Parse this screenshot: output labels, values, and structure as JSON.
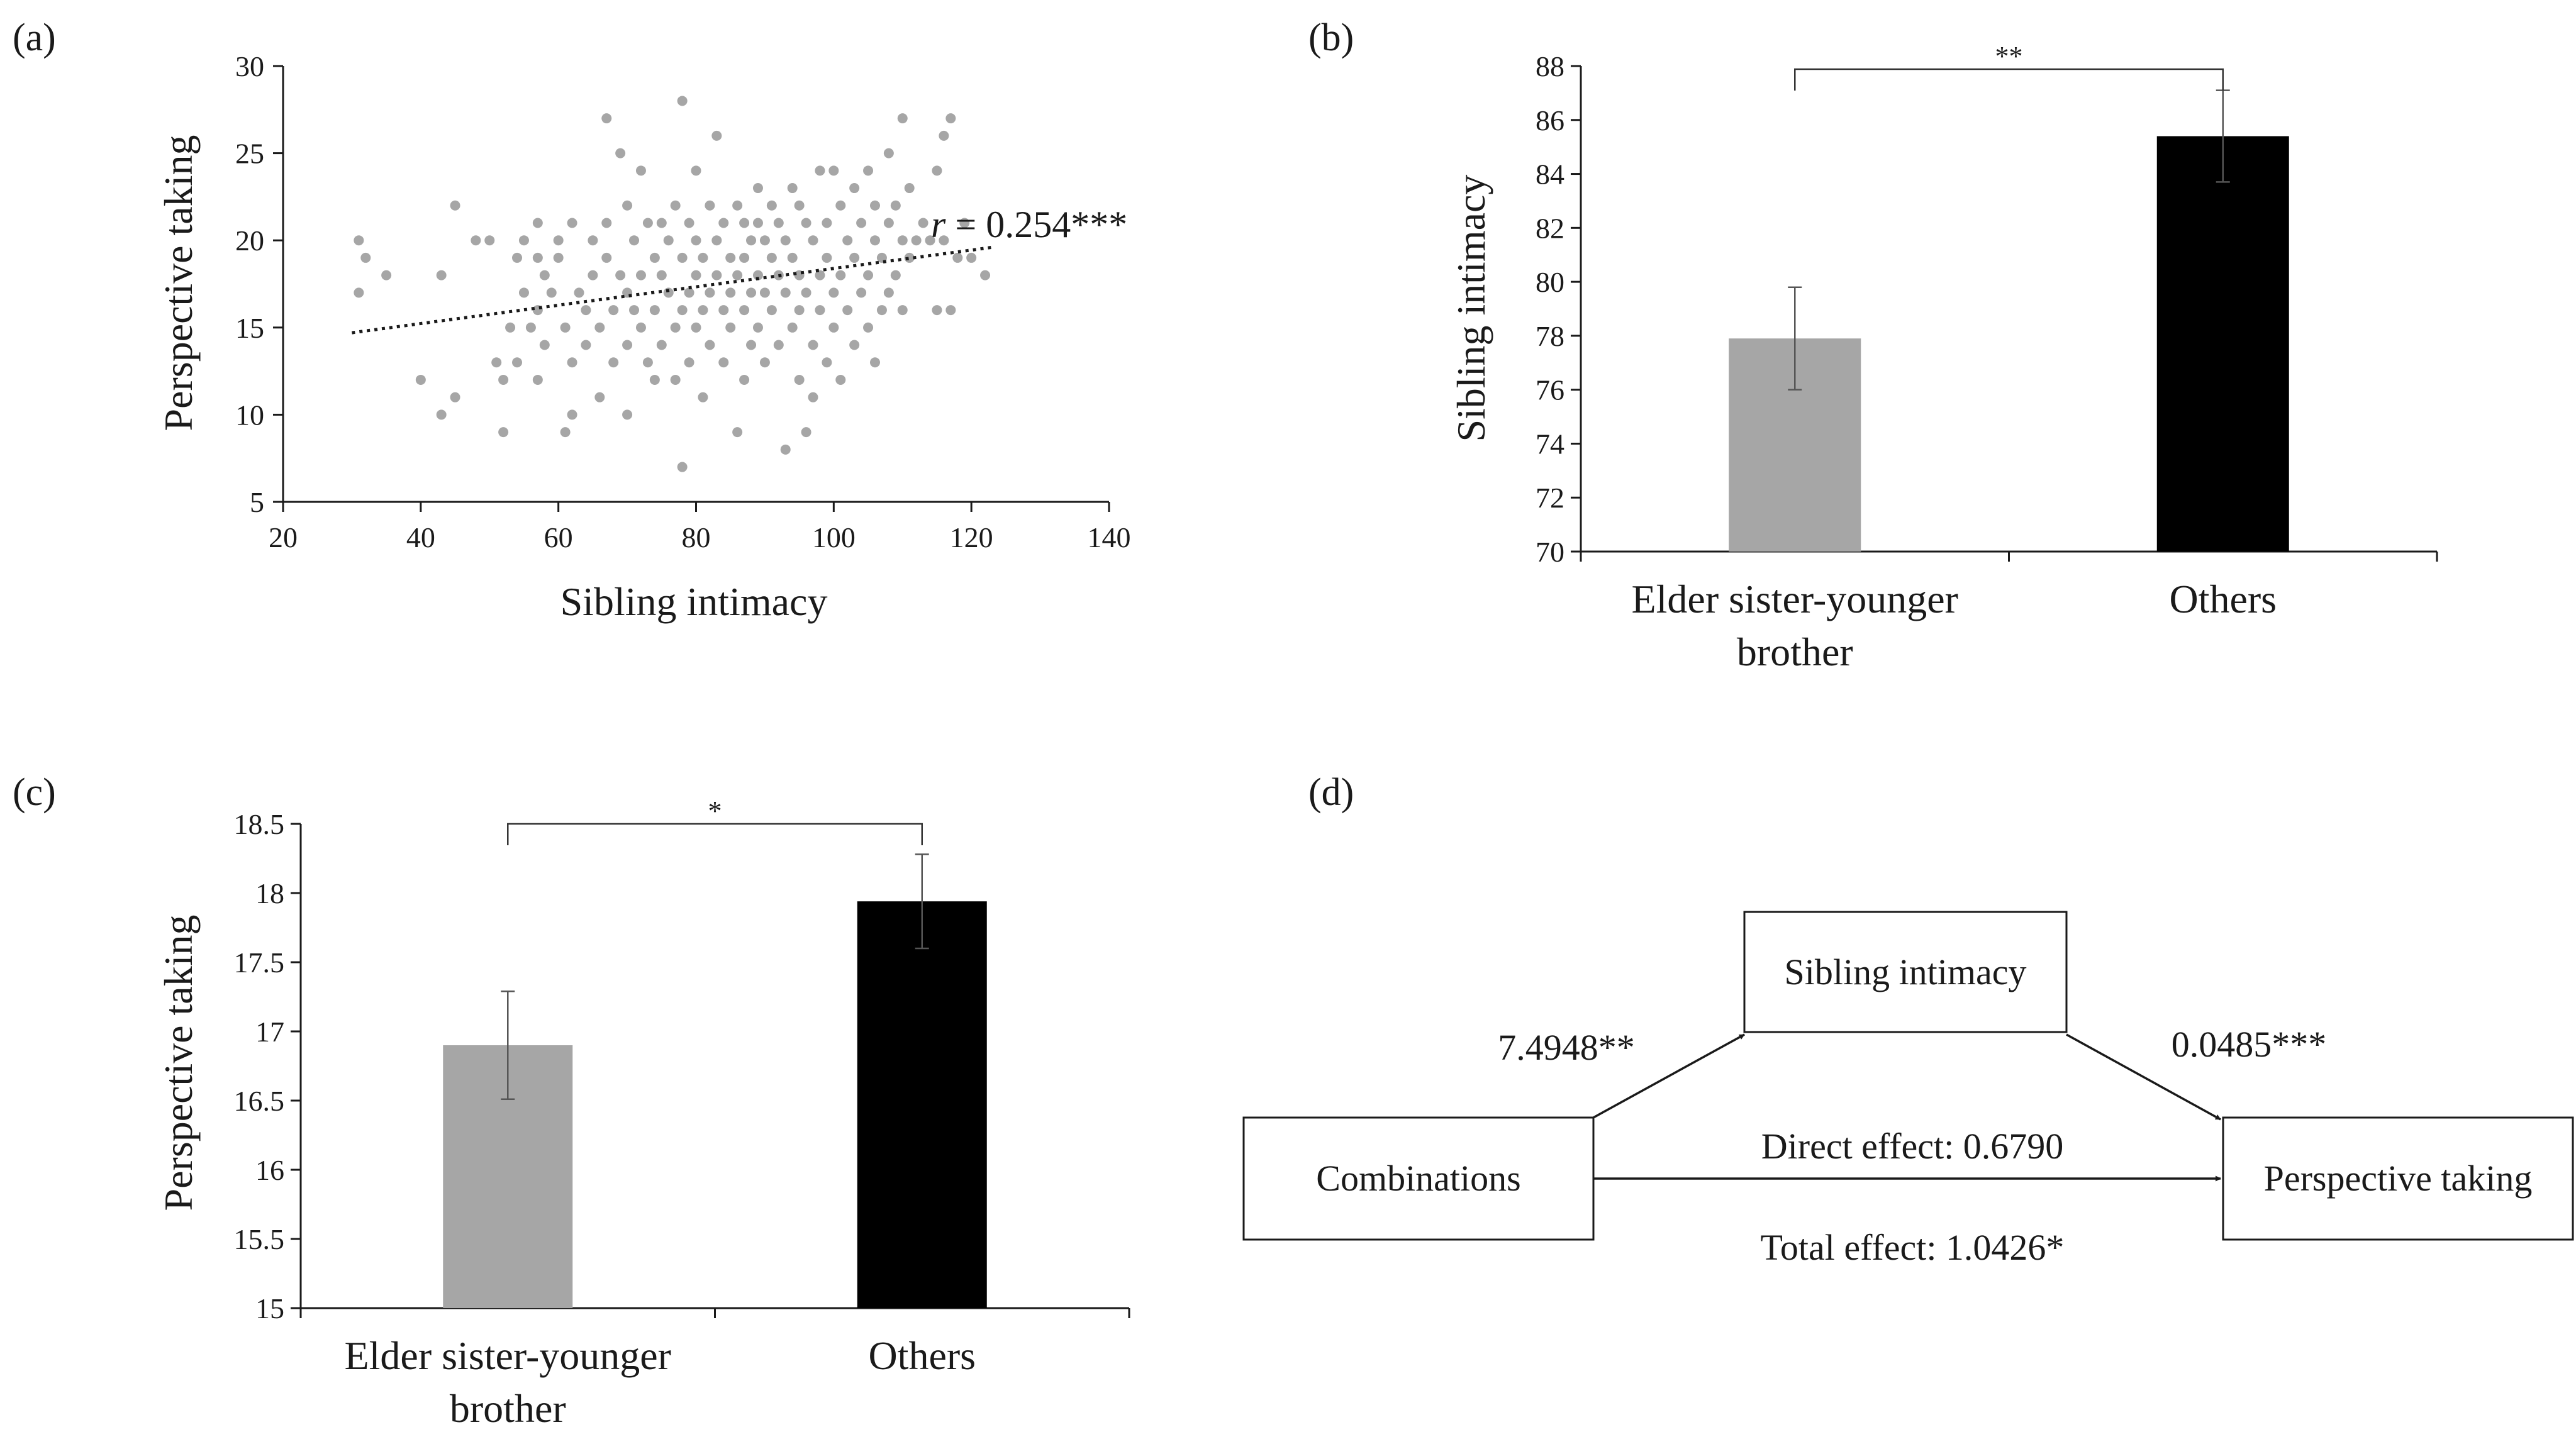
{
  "panels": {
    "a": {
      "label": "(a)"
    },
    "b": {
      "label": "(b)"
    },
    "c": {
      "label": "(c)"
    },
    "d": {
      "label": "(d)"
    }
  },
  "chart_data": [
    {
      "id": "a",
      "type": "scatter",
      "xlabel": "Sibling intimacy",
      "ylabel": "Perspective taking",
      "xlim": [
        20,
        140
      ],
      "ylim": [
        5,
        30
      ],
      "xticks": [
        20,
        40,
        60,
        80,
        100,
        120,
        140
      ],
      "yticks": [
        5,
        10,
        15,
        20,
        25,
        30
      ],
      "trendline": {
        "x": [
          30,
          123
        ],
        "y": [
          14.7,
          19.6
        ]
      },
      "annotation": {
        "italic": "r",
        "text": " = 0.254***"
      },
      "marker_color": "#a6a6a6",
      "points": [
        [
          31,
          20
        ],
        [
          31,
          17
        ],
        [
          32,
          19
        ],
        [
          35,
          18
        ],
        [
          40,
          12
        ],
        [
          43,
          10
        ],
        [
          43,
          18
        ],
        [
          45,
          11
        ],
        [
          45,
          22
        ],
        [
          48,
          20
        ],
        [
          50,
          20
        ],
        [
          51,
          13
        ],
        [
          52,
          9
        ],
        [
          52,
          12
        ],
        [
          53,
          15
        ],
        [
          54,
          19
        ],
        [
          54,
          13
        ],
        [
          55,
          20
        ],
        [
          55,
          17
        ],
        [
          56,
          15
        ],
        [
          57,
          21
        ],
        [
          57,
          19
        ],
        [
          57,
          16
        ],
        [
          57,
          12
        ],
        [
          58,
          18
        ],
        [
          58,
          14
        ],
        [
          59,
          17
        ],
        [
          60,
          20
        ],
        [
          60,
          19
        ],
        [
          61,
          9
        ],
        [
          61,
          15
        ],
        [
          62,
          21
        ],
        [
          62,
          13
        ],
        [
          62,
          10
        ],
        [
          63,
          17
        ],
        [
          64,
          16
        ],
        [
          64,
          14
        ],
        [
          65,
          20
        ],
        [
          65,
          18
        ],
        [
          66,
          15
        ],
        [
          66,
          11
        ],
        [
          67,
          21
        ],
        [
          67,
          19
        ],
        [
          67,
          27
        ],
        [
          68,
          16
        ],
        [
          68,
          13
        ],
        [
          69,
          25
        ],
        [
          69,
          18
        ],
        [
          70,
          22
        ],
        [
          70,
          17
        ],
        [
          70,
          14
        ],
        [
          70,
          10
        ],
        [
          71,
          20
        ],
        [
          71,
          16
        ],
        [
          72,
          24
        ],
        [
          72,
          18
        ],
        [
          72,
          15
        ],
        [
          73,
          21
        ],
        [
          73,
          13
        ],
        [
          74,
          19
        ],
        [
          74,
          16
        ],
        [
          74,
          12
        ],
        [
          75,
          21
        ],
        [
          75,
          18
        ],
        [
          75,
          14
        ],
        [
          76,
          17
        ],
        [
          76,
          20
        ],
        [
          77,
          22
        ],
        [
          77,
          15
        ],
        [
          77,
          12
        ],
        [
          78,
          19
        ],
        [
          78,
          28
        ],
        [
          78,
          16
        ],
        [
          78,
          7
        ],
        [
          79,
          21
        ],
        [
          79,
          17
        ],
        [
          79,
          13
        ],
        [
          80,
          24
        ],
        [
          80,
          20
        ],
        [
          80,
          18
        ],
        [
          80,
          15
        ],
        [
          81,
          19
        ],
        [
          81,
          16
        ],
        [
          81,
          11
        ],
        [
          82,
          22
        ],
        [
          82,
          17
        ],
        [
          82,
          14
        ],
        [
          83,
          26
        ],
        [
          83,
          20
        ],
        [
          83,
          18
        ],
        [
          84,
          21
        ],
        [
          84,
          16
        ],
        [
          84,
          13
        ],
        [
          85,
          19
        ],
        [
          85,
          17
        ],
        [
          85,
          15
        ],
        [
          86,
          22
        ],
        [
          86,
          18
        ],
        [
          86,
          9
        ],
        [
          87,
          21
        ],
        [
          87,
          19
        ],
        [
          87,
          16
        ],
        [
          87,
          12
        ],
        [
          88,
          20
        ],
        [
          88,
          17
        ],
        [
          88,
          14
        ],
        [
          89,
          23
        ],
        [
          89,
          21
        ],
        [
          89,
          18
        ],
        [
          89,
          15
        ],
        [
          90,
          20
        ],
        [
          90,
          17
        ],
        [
          90,
          13
        ],
        [
          91,
          22
        ],
        [
          91,
          19
        ],
        [
          91,
          16
        ],
        [
          92,
          21
        ],
        [
          92,
          18
        ],
        [
          92,
          14
        ],
        [
          93,
          20
        ],
        [
          93,
          17
        ],
        [
          93,
          8
        ],
        [
          94,
          23
        ],
        [
          94,
          19
        ],
        [
          94,
          15
        ],
        [
          95,
          22
        ],
        [
          95,
          18
        ],
        [
          95,
          16
        ],
        [
          95,
          12
        ],
        [
          96,
          21
        ],
        [
          96,
          17
        ],
        [
          96,
          9
        ],
        [
          97,
          20
        ],
        [
          97,
          14
        ],
        [
          97,
          11
        ],
        [
          98,
          24
        ],
        [
          98,
          18
        ],
        [
          98,
          16
        ],
        [
          99,
          21
        ],
        [
          99,
          19
        ],
        [
          99,
          13
        ],
        [
          100,
          24
        ],
        [
          100,
          17
        ],
        [
          100,
          15
        ],
        [
          101,
          22
        ],
        [
          101,
          18
        ],
        [
          101,
          12
        ],
        [
          102,
          20
        ],
        [
          102,
          16
        ],
        [
          103,
          23
        ],
        [
          103,
          19
        ],
        [
          103,
          14
        ],
        [
          104,
          21
        ],
        [
          104,
          17
        ],
        [
          105,
          24
        ],
        [
          105,
          18
        ],
        [
          105,
          15
        ],
        [
          106,
          22
        ],
        [
          106,
          20
        ],
        [
          106,
          13
        ],
        [
          107,
          19
        ],
        [
          107,
          16
        ],
        [
          108,
          25
        ],
        [
          108,
          21
        ],
        [
          108,
          17
        ],
        [
          109,
          22
        ],
        [
          109,
          18
        ],
        [
          110,
          27
        ],
        [
          110,
          20
        ],
        [
          110,
          16
        ],
        [
          111,
          23
        ],
        [
          111,
          19
        ],
        [
          112,
          20
        ],
        [
          113,
          21
        ],
        [
          114,
          20
        ],
        [
          115,
          24
        ],
        [
          115,
          16
        ],
        [
          116,
          26
        ],
        [
          116,
          20
        ],
        [
          117,
          27
        ],
        [
          117,
          16
        ],
        [
          118,
          19
        ],
        [
          119,
          21
        ],
        [
          120,
          19
        ],
        [
          122,
          18
        ]
      ]
    },
    {
      "id": "b",
      "type": "bar",
      "ylabel": "Sibling intimacy",
      "ylim": [
        70,
        88
      ],
      "yticks": [
        70,
        72,
        74,
        76,
        78,
        80,
        82,
        84,
        86,
        88
      ],
      "categories": [
        "Elder sister-younger brother",
        "Others"
      ],
      "category_lines": [
        [
          "Elder sister-younger",
          "brother"
        ],
        [
          "Others"
        ]
      ],
      "values": [
        77.9,
        85.4
      ],
      "errors": [
        1.9,
        1.7
      ],
      "colors": [
        "#a6a6a6",
        "#000000"
      ],
      "significance": "**"
    },
    {
      "id": "c",
      "type": "bar",
      "ylabel": "Perspective taking",
      "ylim": [
        15,
        18.5
      ],
      "yticks": [
        15,
        15.5,
        16,
        16.5,
        17,
        17.5,
        18,
        18.5
      ],
      "categories": [
        "Elder sister-younger brother",
        "Others"
      ],
      "category_lines": [
        [
          "Elder sister-younger",
          "brother"
        ],
        [
          "Others"
        ]
      ],
      "values": [
        16.9,
        17.94
      ],
      "errors": [
        0.39,
        0.34
      ],
      "colors": [
        "#a6a6a6",
        "#000000"
      ],
      "significance": "*"
    }
  ],
  "diagram": {
    "mediator": "Sibling intimacy",
    "predictor": "Combinations",
    "outcome": "Perspective taking",
    "path_a": "7.4948**",
    "path_b": "0.0485***",
    "direct": "Direct effect: 0.6790",
    "total": "Total effect: 1.0426*"
  }
}
